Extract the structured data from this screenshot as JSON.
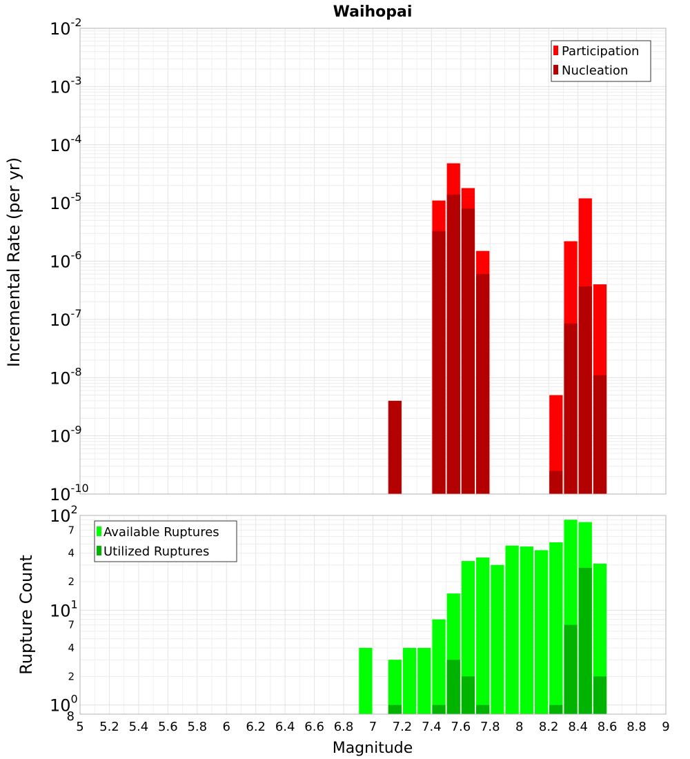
{
  "chart_data": [
    {
      "type": "bar",
      "title": "Waihopai",
      "ylabel": "Incremental Rate (per yr)",
      "yscale": "log",
      "ylim": [
        1e-10,
        0.01
      ],
      "xlim": [
        5,
        9
      ],
      "bin_width": 0.1,
      "legend_position": "top-right",
      "y_tick_bases": [
        "10",
        "10",
        "10",
        "10",
        "10",
        "10",
        "10",
        "10",
        "10"
      ],
      "y_tick_exponents": [
        "-10",
        "-9",
        "-8",
        "-7",
        "-6",
        "-5",
        "-4",
        "-3",
        "-2"
      ],
      "series": [
        {
          "name": "Participation",
          "color": "#ff0000",
          "x": [
            7.45,
            7.55,
            7.65,
            7.75,
            8.25,
            8.35,
            8.45,
            8.55
          ],
          "values": [
            1.1e-05,
            4.8e-05,
            1.8e-05,
            1.5e-06,
            5e-09,
            2.2e-06,
            1.2e-05,
            4e-07
          ]
        },
        {
          "name": "Nucleation",
          "color": "#b30000",
          "x": [
            7.15,
            7.45,
            7.55,
            7.65,
            7.75,
            8.25,
            8.35,
            8.45,
            8.55
          ],
          "values": [
            4e-09,
            3.3e-06,
            1.4e-05,
            8e-06,
            6e-07,
            2.5e-10,
            8.5e-08,
            3.7e-07,
            1.1e-08
          ]
        }
      ]
    },
    {
      "type": "bar",
      "xlabel": "Magnitude",
      "ylabel": "Rupture Count",
      "yscale": "log",
      "ylim": [
        0.8,
        100
      ],
      "legend_position": "top-left",
      "x_ticks": [
        "5",
        "5.2",
        "5.4",
        "5.6",
        "5.8",
        "6",
        "6.2",
        "6.4",
        "6.6",
        "6.8",
        "7",
        "7.2",
        "7.4",
        "7.6",
        "7.8",
        "8",
        "8.2",
        "8.4",
        "8.6",
        "8.8",
        "9"
      ],
      "y_tick_labels": [
        {
          "base": "10",
          "exp": "0",
          "value": 1,
          "extra": "8"
        },
        {
          "base": "10",
          "exp": "1",
          "value": 10
        },
        {
          "base": "10",
          "exp": "2",
          "value": 100
        }
      ],
      "y_minor_labels": [
        {
          "label": "2",
          "value": 2
        },
        {
          "label": "4",
          "value": 4
        },
        {
          "label": "7",
          "value": 7
        },
        {
          "label": "2",
          "value": 20
        },
        {
          "label": "4",
          "value": 40
        },
        {
          "label": "7",
          "value": 70
        }
      ],
      "series": [
        {
          "name": "Available Ruptures",
          "color": "#00ff00",
          "x": [
            6.95,
            7.15,
            7.25,
            7.35,
            7.45,
            7.55,
            7.65,
            7.75,
            7.85,
            7.95,
            8.05,
            8.15,
            8.25,
            8.35,
            8.45,
            8.55
          ],
          "values": [
            4,
            3,
            4,
            4,
            8,
            15,
            33,
            36,
            30,
            48,
            47,
            43,
            52,
            90,
            85,
            31
          ]
        },
        {
          "name": "Utilized Ruptures",
          "color": "#00b300",
          "x": [
            7.15,
            7.45,
            7.55,
            7.65,
            7.75,
            8.25,
            8.35,
            8.45,
            8.55
          ],
          "values": [
            1,
            1,
            3,
            2,
            1,
            1,
            7,
            28,
            2
          ]
        }
      ]
    }
  ]
}
